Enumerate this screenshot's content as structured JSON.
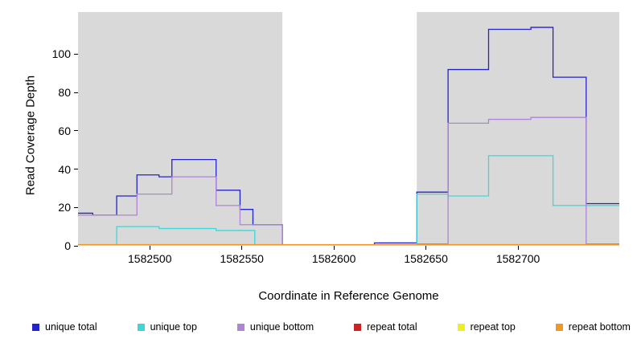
{
  "chart_data": {
    "type": "line",
    "style": "step",
    "title": "",
    "xlabel": "Coordinate in Reference Genome",
    "ylabel": "Read Coverage Depth",
    "xlim": [
      1582461,
      1582755
    ],
    "ylim": [
      0,
      122
    ],
    "x_ticks": [
      1582500,
      1582550,
      1582600,
      1582650,
      1582700
    ],
    "y_ticks": [
      0,
      20,
      40,
      60,
      80,
      100
    ],
    "grid": false,
    "legend_position": "bottom",
    "shade_color": "#D9D9D9",
    "shaded_regions": [
      [
        1582461,
        1582572
      ],
      [
        1582645,
        1582755
      ]
    ],
    "series": [
      {
        "name": "unique total",
        "color": "#2323CD",
        "points": [
          [
            1582461,
            17
          ],
          [
            1582469,
            16
          ],
          [
            1582482,
            26
          ],
          [
            1582493,
            37
          ],
          [
            1582505,
            36
          ],
          [
            1582512,
            45
          ],
          [
            1582536,
            29
          ],
          [
            1582549,
            19
          ],
          [
            1582556,
            11
          ],
          [
            1582572,
            0.5
          ],
          [
            1582622,
            1.5
          ],
          [
            1582645,
            28
          ],
          [
            1582662,
            92
          ],
          [
            1582684,
            113
          ],
          [
            1582707,
            114
          ],
          [
            1582719,
            88
          ],
          [
            1582737,
            22
          ]
        ]
      },
      {
        "name": "unique top",
        "color": "#3FD6D6",
        "points": [
          [
            1582461,
            0.5
          ],
          [
            1582482,
            10
          ],
          [
            1582505,
            9
          ],
          [
            1582536,
            8
          ],
          [
            1582557,
            0.5
          ],
          [
            1582645,
            27
          ],
          [
            1582662,
            26
          ],
          [
            1582684,
            47
          ],
          [
            1582719,
            21
          ]
        ]
      },
      {
        "name": "unique bottom",
        "color": "#AE84D4",
        "points": [
          [
            1582461,
            16
          ],
          [
            1582493,
            27
          ],
          [
            1582512,
            36
          ],
          [
            1582536,
            21
          ],
          [
            1582549,
            11
          ],
          [
            1582572,
            0.3
          ],
          [
            1582645,
            1
          ],
          [
            1582662,
            64
          ],
          [
            1582684,
            66
          ],
          [
            1582707,
            67
          ],
          [
            1582737,
            1
          ]
        ]
      },
      {
        "name": "repeat total",
        "color": "#CC2222",
        "points": [
          [
            1582461,
            0.4
          ]
        ]
      },
      {
        "name": "repeat top",
        "color": "#EEEE22",
        "points": [
          [
            1582461,
            0.2
          ]
        ]
      },
      {
        "name": "repeat bottom",
        "color": "#EE9922",
        "points": [
          [
            1582461,
            0.6
          ]
        ]
      }
    ]
  }
}
